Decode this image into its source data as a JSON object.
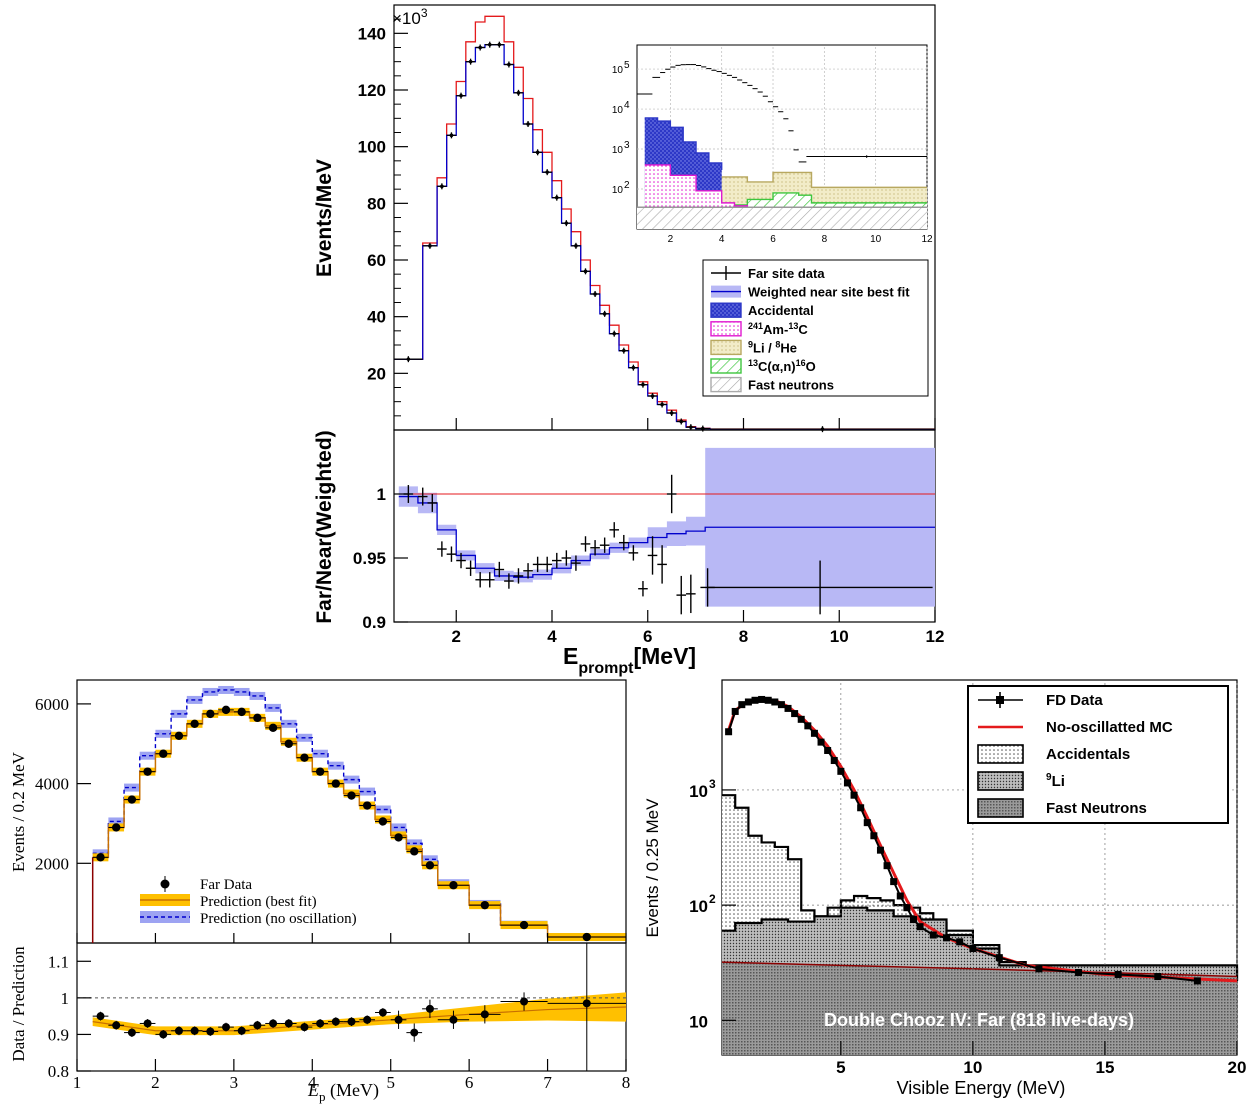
{
  "chart_data": [
    {
      "type": "line",
      "panel": "top-main",
      "ylabel": "Events/MeV",
      "scale_label": "×10",
      "scale_exp": "3",
      "xlim": [
        0.7,
        12
      ],
      "ylim": [
        0,
        150
      ],
      "ytick_labels": [
        "20",
        "40",
        "60",
        "80",
        "100",
        "120",
        "140"
      ],
      "yticks": [
        20,
        40,
        60,
        80,
        100,
        120,
        140
      ],
      "bin_edges": [
        0.7,
        1.3,
        1.6,
        1.8,
        2.0,
        2.2,
        2.4,
        2.6,
        2.8,
        3.0,
        3.2,
        3.4,
        3.6,
        3.8,
        4.0,
        4.2,
        4.4,
        4.6,
        4.8,
        5.0,
        5.2,
        5.4,
        5.6,
        5.8,
        6.0,
        6.2,
        6.4,
        6.6,
        6.8,
        7.0,
        7.3,
        12
      ],
      "series": [
        {
          "name": "Far site data",
          "values": [
            25,
            65,
            86,
            104,
            118,
            130,
            135,
            136,
            136,
            129,
            119,
            108,
            98,
            91,
            82,
            73,
            65,
            56,
            48,
            41,
            34,
            28,
            22,
            16,
            12,
            9,
            6,
            3,
            1,
            0.5,
            0.3
          ]
        },
        {
          "name": "Weighted near site best fit",
          "values": [
            25,
            65,
            86,
            104,
            118,
            130,
            135,
            136,
            136,
            129,
            119,
            108,
            98,
            91,
            82,
            73,
            65,
            56,
            48,
            41,
            34,
            28,
            22,
            16,
            12,
            9,
            6,
            3,
            1,
            0.5,
            0.3
          ]
        },
        {
          "name": "no-oscillation",
          "values": [
            25,
            66,
            89,
            108,
            123,
            137,
            144,
            146,
            146,
            137,
            128,
            117,
            106,
            98,
            88,
            78,
            70,
            60,
            51,
            44,
            37,
            30,
            24,
            17,
            13,
            10,
            7,
            3.5,
            1.2,
            0.6,
            0.35
          ]
        }
      ],
      "legend": [
        "Far site data",
        "Weighted near site best fit",
        "Accidental",
        "²⁴¹Am-¹³C",
        "⁹Li / ⁸He",
        "¹³C(α,n)¹⁶O",
        "Fast neutrons"
      ],
      "legend_position": "right"
    },
    {
      "type": "area",
      "panel": "top-inset",
      "yscale": "log",
      "xlim": [
        0.7,
        12
      ],
      "ylim": [
        10,
        400000
      ],
      "xticks": [
        2,
        4,
        6,
        8,
        10,
        12
      ],
      "xtick_labels": [
        "2",
        "4",
        "6",
        "8",
        "10",
        "12"
      ],
      "yticks": [
        100,
        1000,
        10000,
        100000
      ],
      "ytick_labels": [
        "10",
        "10",
        "10",
        "10"
      ],
      "ytick_exps": [
        "2",
        "3",
        "4",
        "5"
      ],
      "series": [
        {
          "name": "Accidental",
          "x": [
            1,
            1.5,
            2,
            2.5,
            3,
            3.5,
            4
          ],
          "values": [
            6000,
            5000,
            3500,
            1500,
            800,
            450,
            300
          ]
        },
        {
          "name": "²⁴¹Am-¹³C",
          "x": [
            1,
            2,
            3,
            4,
            4.5,
            5
          ],
          "values": [
            400,
            220,
            90,
            45,
            38,
            40
          ]
        },
        {
          "name": "⁹Li / ⁸He",
          "x": [
            1,
            3,
            5,
            6,
            7,
            7.5,
            12
          ],
          "values": [
            250,
            200,
            150,
            260,
            260,
            110,
            110
          ]
        },
        {
          "name": "¹³C(α,n)¹⁶O",
          "x": [
            1,
            2,
            3,
            4,
            5,
            6,
            7,
            7.5,
            12
          ],
          "values": [
            120,
            80,
            55,
            40,
            55,
            80,
            70,
            45,
            45
          ]
        },
        {
          "name": "Fast neutrons",
          "x": [
            0.7,
            12
          ],
          "values": [
            35,
            35
          ]
        }
      ]
    },
    {
      "type": "line",
      "panel": "top-ratio",
      "ylabel": "Far/Near(Weighted)",
      "xlabel": "E",
      "xlabel_sub": "prompt",
      "xlabel_unit": "[MeV]",
      "xlim": [
        0.7,
        12
      ],
      "ylim": [
        0.9,
        1.05
      ],
      "yticks": [
        0.9,
        0.95,
        1.0
      ],
      "ytick_labels": [
        "0.9",
        "0.95",
        "1"
      ],
      "xticks": [
        2,
        4,
        6,
        8,
        10,
        12
      ],
      "xtick_labels": [
        "2",
        "4",
        "6",
        "8",
        "10",
        "12"
      ],
      "reference": 1.0,
      "fit": {
        "x": [
          0.8,
          1.2,
          1.6,
          2.0,
          2.4,
          2.8,
          3.2,
          3.6,
          4.0,
          4.4,
          4.8,
          5.2,
          5.6,
          6.0,
          6.4,
          6.8,
          7.2,
          12
        ],
        "values": [
          0.998,
          0.993,
          0.972,
          0.952,
          0.942,
          0.936,
          0.935,
          0.937,
          0.942,
          0.948,
          0.953,
          0.958,
          0.962,
          0.966,
          0.969,
          0.971,
          0.974,
          0.974
        ]
      },
      "data": {
        "x": [
          1.0,
          1.3,
          1.5,
          1.7,
          1.9,
          2.1,
          2.3,
          2.5,
          2.7,
          2.9,
          3.1,
          3.3,
          3.5,
          3.7,
          3.9,
          4.1,
          4.3,
          4.5,
          4.7,
          4.9,
          5.1,
          5.3,
          5.5,
          5.7,
          5.9,
          6.1,
          6.3,
          6.5,
          6.7,
          6.9,
          7.25,
          9.6
        ],
        "values": [
          1.0,
          0.998,
          0.993,
          0.957,
          0.953,
          0.948,
          0.942,
          0.933,
          0.933,
          0.941,
          0.932,
          0.936,
          0.94,
          0.945,
          0.945,
          0.948,
          0.95,
          0.946,
          0.961,
          0.958,
          0.96,
          0.972,
          0.962,
          0.954,
          0.926,
          0.952,
          0.945,
          1.0,
          0.921,
          0.922,
          0.927,
          0.927
        ]
      }
    },
    {
      "type": "line",
      "panel": "bottom-left-main",
      "ylabel": "Events / 0.2 MeV",
      "xlim": [
        1,
        8
      ],
      "ylim": [
        0,
        6600
      ],
      "yticks": [
        2000,
        4000,
        6000
      ],
      "ytick_labels": [
        "2000",
        "4000",
        "6000"
      ],
      "bin_edges": [
        1.2,
        1.4,
        1.6,
        1.8,
        2.0,
        2.2,
        2.4,
        2.6,
        2.8,
        3.0,
        3.2,
        3.4,
        3.6,
        3.8,
        4.0,
        4.2,
        4.4,
        4.6,
        4.8,
        5.0,
        5.2,
        5.4,
        5.6,
        6.0,
        6.4,
        7.0,
        8.0
      ],
      "series": [
        {
          "name": "Far Data",
          "values": [
            2150,
            2900,
            3600,
            4300,
            4750,
            5200,
            5500,
            5750,
            5850,
            5800,
            5650,
            5400,
            5000,
            4650,
            4300,
            4000,
            3700,
            3450,
            3050,
            2650,
            2300,
            1950,
            1450,
            950,
            450,
            150
          ]
        },
        {
          "name": "Prediction (best fit)",
          "values": [
            2150,
            2900,
            3600,
            4300,
            4750,
            5200,
            5500,
            5750,
            5800,
            5800,
            5650,
            5450,
            5050,
            4650,
            4300,
            4000,
            3750,
            3450,
            3100,
            2700,
            2350,
            1950,
            1450,
            950,
            450,
            150
          ]
        },
        {
          "name": "Prediction (no oscillation)",
          "values": [
            2250,
            3050,
            3900,
            4700,
            5250,
            5750,
            6100,
            6300,
            6350,
            6300,
            6200,
            5900,
            5500,
            5150,
            4750,
            4450,
            4100,
            3800,
            3350,
            2900,
            2500,
            2100,
            1500,
            980,
            460,
            150
          ]
        }
      ],
      "legend": [
        "Far Data",
        "Prediction (best fit)",
        "Prediction (no oscillation)"
      ],
      "legend_position": "bottom-left"
    },
    {
      "type": "scatter",
      "panel": "bottom-left-ratio",
      "ylabel": "Data / Prediction",
      "xlabel": "E",
      "xlabel_sub": "p",
      "xlabel_unit": " (MeV)",
      "xlim": [
        1,
        8
      ],
      "ylim": [
        0.8,
        1.15
      ],
      "yticks": [
        0.8,
        0.9,
        1.0,
        1.1
      ],
      "ytick_labels": [
        "0.8",
        "0.9",
        "1",
        "1.1"
      ],
      "xticks": [
        1,
        2,
        3,
        4,
        5,
        6,
        7,
        8
      ],
      "xtick_labels": [
        "1",
        "2",
        "3",
        "4",
        "5",
        "6",
        "7",
        "8"
      ],
      "reference": 1.0,
      "band": {
        "x": [
          1.2,
          2.0,
          3.0,
          4.0,
          5.0,
          6.0,
          7.0,
          8.0
        ],
        "values": [
          0.935,
          0.91,
          0.91,
          0.925,
          0.94,
          0.955,
          0.968,
          0.975
        ]
      },
      "data": {
        "x": [
          1.3,
          1.5,
          1.7,
          1.9,
          2.1,
          2.3,
          2.5,
          2.7,
          2.9,
          3.1,
          3.3,
          3.5,
          3.7,
          3.9,
          4.1,
          4.3,
          4.5,
          4.7,
          4.9,
          5.1,
          5.3,
          5.5,
          5.8,
          6.2,
          6.7,
          7.5
        ],
        "values": [
          0.95,
          0.925,
          0.905,
          0.93,
          0.9,
          0.91,
          0.91,
          0.908,
          0.92,
          0.91,
          0.925,
          0.93,
          0.93,
          0.92,
          0.93,
          0.935,
          0.935,
          0.94,
          0.96,
          0.94,
          0.905,
          0.97,
          0.94,
          0.955,
          0.99,
          0.985
        ]
      }
    },
    {
      "type": "area",
      "panel": "bottom-right",
      "ylabel": "Events / 0.25 MeV",
      "xlabel": "Visible Energy (MeV)",
      "yscale": "log",
      "xlim": [
        0.5,
        20
      ],
      "ylim": [
        5,
        9000
      ],
      "xticks": [
        5,
        10,
        15,
        20
      ],
      "xtick_labels": [
        "5",
        "10",
        "15",
        "20"
      ],
      "yticks": [
        10,
        100,
        1000
      ],
      "ytick_labels": [
        "10",
        "10",
        "10"
      ],
      "ytick_exps": [
        "",
        "2",
        "3"
      ],
      "annotation": "Double Chooz IV: Far (818 live-days)",
      "fd_data": {
        "x": [
          0.75,
          1.0,
          1.25,
          1.5,
          1.75,
          2.0,
          2.25,
          2.5,
          2.75,
          3.0,
          3.25,
          3.5,
          3.75,
          4.0,
          4.25,
          4.5,
          4.75,
          5.0,
          5.25,
          5.5,
          5.75,
          6.0,
          6.25,
          6.5,
          6.75,
          7.0,
          7.25,
          7.5,
          7.75,
          8.0,
          8.5,
          9.0,
          9.5,
          10.0,
          11.0,
          12.5,
          14.0,
          15.5,
          17.0,
          18.5
        ],
        "values": [
          3200,
          4800,
          5500,
          5800,
          6000,
          6100,
          6000,
          5800,
          5500,
          5100,
          4600,
          4100,
          3600,
          3100,
          2600,
          2200,
          1800,
          1450,
          1150,
          900,
          700,
          520,
          400,
          300,
          220,
          160,
          120,
          95,
          75,
          65,
          55,
          52,
          48,
          42,
          35,
          28,
          26,
          25,
          24,
          22
        ]
      },
      "mc": {
        "x": [
          0.75,
          1.0,
          1.5,
          2.0,
          2.5,
          3.0,
          3.5,
          4.0,
          4.5,
          5.0,
          5.5,
          6.0,
          6.5,
          7.0,
          7.5,
          8.0,
          9.0,
          10.0,
          12.0,
          15.0,
          20.0
        ],
        "values": [
          3300,
          4900,
          5950,
          6200,
          6000,
          5300,
          4300,
          3300,
          2400,
          1600,
          1000,
          580,
          330,
          190,
          110,
          72,
          52,
          42,
          30,
          25,
          22
        ]
      },
      "accidentals": {
        "x": [
          0.5,
          1.0,
          1.5,
          2.0,
          2.5,
          3.0,
          3.5,
          4.0,
          4.5,
          5.0,
          5.5,
          6.0,
          6.5,
          7.0,
          7.5,
          8.0,
          8.5,
          9.0,
          10.0,
          11.0,
          12.0,
          20.0
        ],
        "values": [
          900,
          700,
          400,
          350,
          320,
          250,
          90,
          80,
          95,
          110,
          120,
          115,
          110,
          100,
          95,
          85,
          70,
          60,
          45,
          32,
          28,
          22
        ]
      },
      "li9": {
        "x": [
          0.5,
          1.0,
          2.0,
          3.0,
          4.0,
          5.0,
          6.0,
          7.0,
          8.0,
          9.0,
          10.0,
          11.0,
          20.0
        ],
        "values": [
          60,
          70,
          75,
          72,
          80,
          95,
          90,
          80,
          75,
          55,
          42,
          30,
          22
        ]
      },
      "fast_neutrons": {
        "x": [
          0.5,
          5.0,
          10.0,
          15.0,
          20.0
        ],
        "values": [
          32,
          30,
          28,
          26,
          24
        ]
      },
      "legend": [
        "FD Data",
        "No-oscillatted MC",
        "Accidentals",
        "⁹Li",
        "Fast Neutrons"
      ],
      "legend_position": "top-right"
    }
  ],
  "labels": {
    "top_ylabel": "Events/MeV",
    "top_scale": "×10",
    "top_scale_exp": "3",
    "top_ratio_ylabel": "Far/Near(Weighted)",
    "top_xlabel_main": "E",
    "top_xlabel_sub": "prompt",
    "top_xlabel_unit": "[MeV]",
    "bl_ylabel": "Events / 0.2 MeV",
    "bl_ratio_ylabel": "Data / Prediction",
    "bl_xlabel_main": "E",
    "bl_xlabel_sub": "p",
    "bl_xlabel_unit": " (MeV)",
    "br_ylabel": "Events / 0.25 MeV",
    "br_xlabel": "Visible Energy (MeV)",
    "br_annotation": "Double Chooz IV: Far (818 live-days)"
  },
  "legends": {
    "top": [
      {
        "text": "Far site data",
        "sup": ""
      },
      {
        "text": "Weighted near site best fit",
        "sup": ""
      },
      {
        "text": "Accidental",
        "sup": ""
      },
      {
        "pre": "241",
        "a": "Am-",
        "mid": "13",
        "b": "C"
      },
      {
        "pre": "9",
        "a": "Li / ",
        "mid": "8",
        "b": "He"
      },
      {
        "pre": "13",
        "a": "C(α,n)",
        "mid": "16",
        "b": "O"
      },
      {
        "text": "Fast neutrons",
        "sup": ""
      }
    ],
    "bottom_left": [
      "Far Data",
      "Prediction (best fit)",
      "Prediction (no oscillation)"
    ],
    "bottom_right": [
      "FD Data",
      "No-oscillatted MC",
      "Accidentals",
      "Li",
      "Fast Neutrons"
    ],
    "bottom_right_li_sup": "9"
  },
  "colors": {
    "red": "#e41a1c",
    "blue": "#0000cc",
    "lightblue": "#b8b8f5",
    "accidental": "#2d38c7",
    "amc": "#e01ad0",
    "li": "#e6dca6",
    "alpha": "#3ec63e",
    "fastn": "#bbbbbb",
    "orange": "#ffc000",
    "darkorange": "#c87000"
  }
}
